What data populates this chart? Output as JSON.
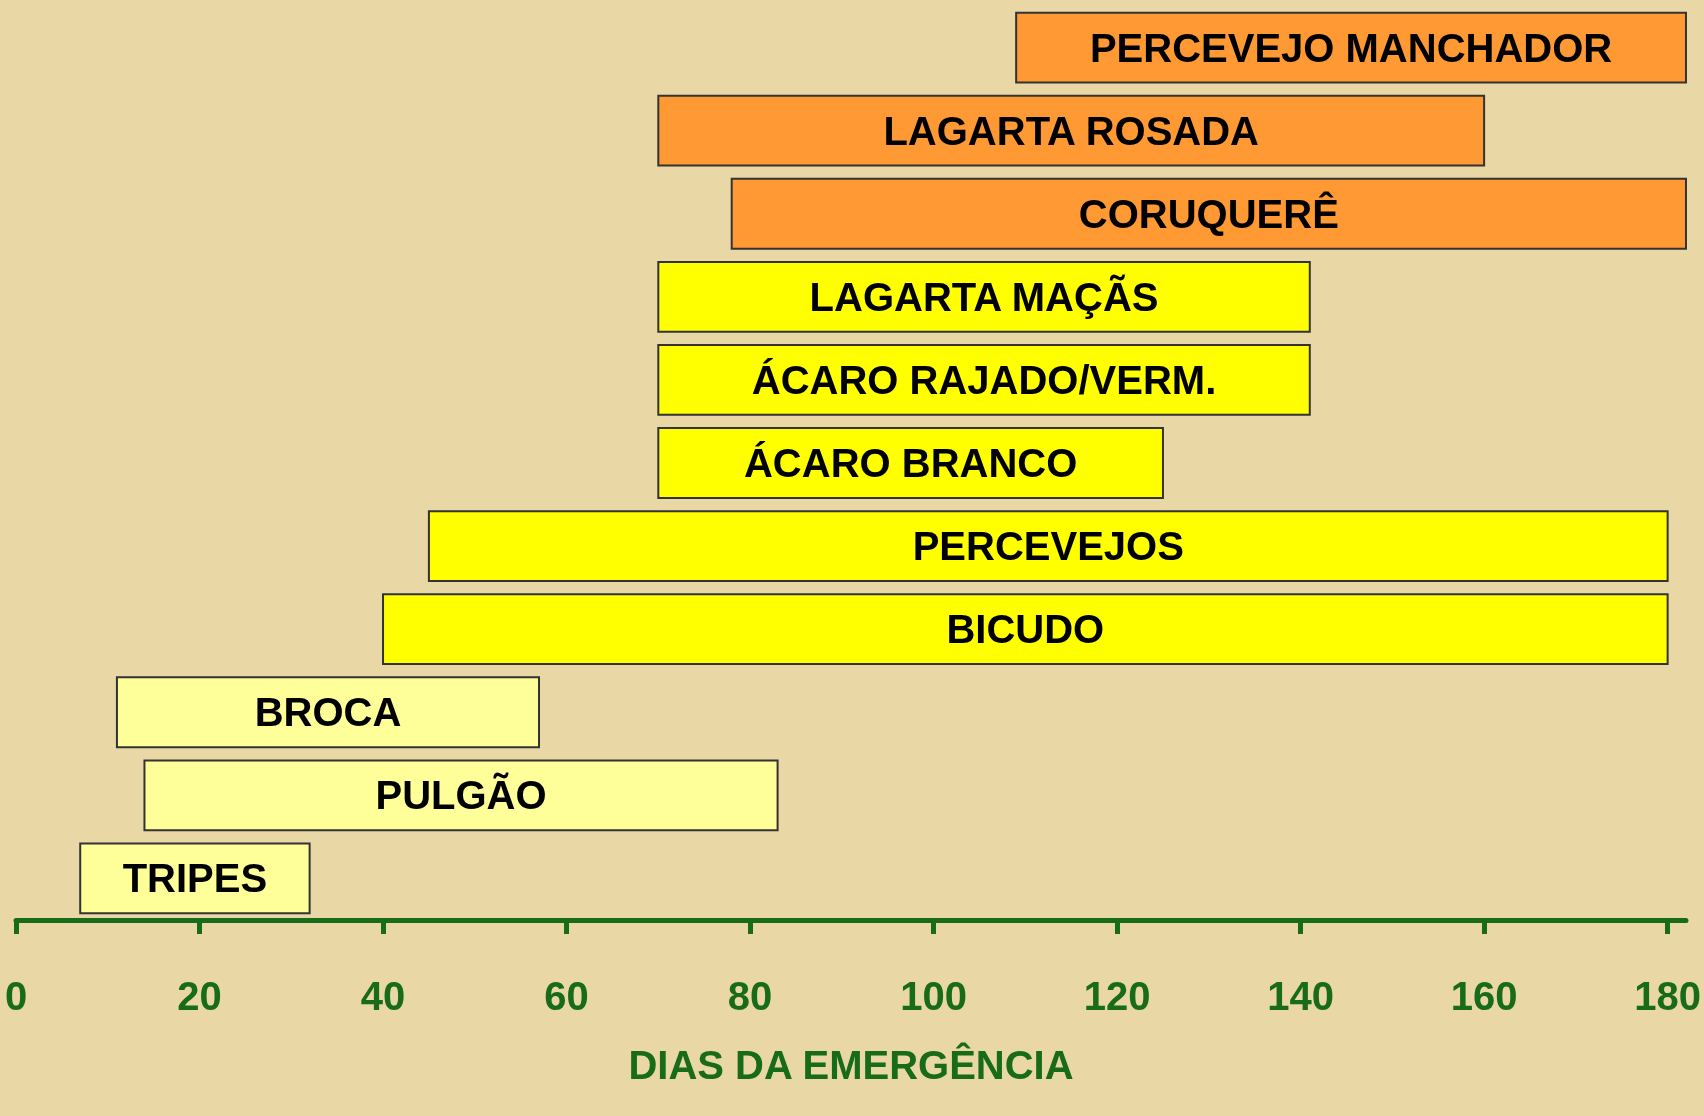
{
  "chart_data": {
    "type": "bar",
    "orientation": "horizontal",
    "xlabel": "DIAS DA EMERGÊNCIA",
    "categories": [
      "PERCEVEJO MANCHADOR",
      "LAGARTA ROSADA",
      "CORUQUERÊ",
      "LAGARTA MAÇÃS",
      "ÁCARO RAJADO/VERM.",
      "ÁCARO BRANCO",
      "PERCEVEJOS",
      "BICUDO",
      "BROCA",
      "PULGÃO",
      "TRIPES"
    ],
    "base": [
      109,
      70,
      78,
      70,
      70,
      70,
      45,
      40,
      11,
      14,
      7
    ],
    "values": [
      73,
      90,
      104,
      71,
      71,
      55,
      135,
      140,
      46,
      69,
      25
    ],
    "colors": [
      "#ff9933",
      "#ff9933",
      "#ff9933",
      "#ffff00",
      "#ffff00",
      "#ffff00",
      "#ffff00",
      "#ffff00",
      "#ffff99",
      "#ffff99",
      "#ffff99"
    ],
    "xlim": [
      0,
      182
    ],
    "xticks": [
      0,
      20,
      40,
      60,
      80,
      100,
      120,
      140,
      160,
      180
    ],
    "grid": false
  }
}
